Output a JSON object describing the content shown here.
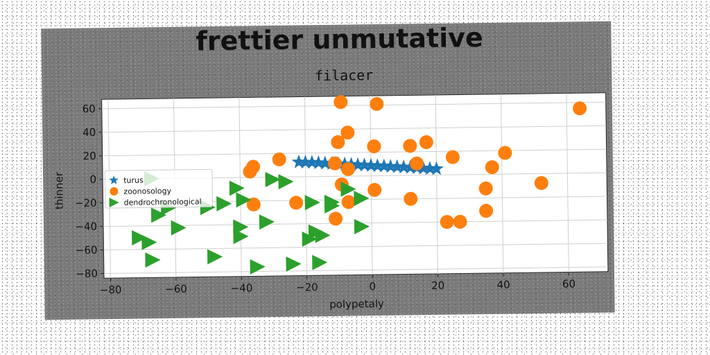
{
  "chart_data": {
    "type": "scatter",
    "title": "frettier unmutative",
    "subtitle": "filacer",
    "xlabel": "polypetaly",
    "ylabel": "thinner",
    "xlim": [
      -82,
      72
    ],
    "ylim": [
      -84,
      68
    ],
    "xticks": [
      -80,
      -60,
      -40,
      -20,
      0,
      20,
      40,
      60
    ],
    "yticks": [
      -80,
      -60,
      -40,
      -20,
      0,
      20,
      40,
      60
    ],
    "xtick_labels": [
      "−80",
      "−60",
      "−40",
      "−20",
      "0",
      "20",
      "40",
      "60"
    ],
    "ytick_labels": [
      "−80",
      "−60",
      "−40",
      "−20",
      "0",
      "20",
      "40",
      "60"
    ],
    "grid": true,
    "legend_position": "center-left",
    "series": [
      {
        "name": "turus",
        "marker": "star",
        "color": "#1f77b4",
        "points": [
          [
            -22,
            12.5
          ],
          [
            -20,
            12.2
          ],
          [
            -18,
            12
          ],
          [
            -16,
            11.6
          ],
          [
            -14,
            11.2
          ],
          [
            -12,
            10.8
          ],
          [
            -10,
            10.5
          ],
          [
            -8,
            10.2
          ],
          [
            -6,
            9.8
          ],
          [
            -4,
            9.4
          ],
          [
            -2,
            9.1
          ],
          [
            0,
            8.7
          ],
          [
            2,
            8.4
          ],
          [
            4,
            8.1
          ],
          [
            6,
            7.7
          ],
          [
            8,
            7.3
          ],
          [
            10,
            7
          ],
          [
            12,
            6.6
          ],
          [
            14,
            6.3
          ],
          [
            16,
            5.9
          ],
          [
            18,
            5.5
          ],
          [
            20,
            5.2
          ]
        ]
      },
      {
        "name": "zoonosology",
        "marker": "circle",
        "color": "#ff7f0e",
        "points": [
          [
            -9,
            63
          ],
          [
            2,
            61
          ],
          [
            -7,
            37
          ],
          [
            -10,
            29
          ],
          [
            1,
            25
          ],
          [
            -36,
            9
          ],
          [
            -37,
            5
          ],
          [
            -28,
            15
          ],
          [
            -11,
            11
          ],
          [
            -7,
            6
          ],
          [
            12,
            25
          ],
          [
            17,
            28
          ],
          [
            14,
            10
          ],
          [
            25,
            15
          ],
          [
            41,
            18
          ],
          [
            37,
            6
          ],
          [
            64,
            55
          ],
          [
            -9,
            -7
          ],
          [
            1,
            -12
          ],
          [
            -7,
            -22
          ],
          [
            -36,
            -23
          ],
          [
            -23,
            -22
          ],
          [
            -11,
            -36
          ],
          [
            12,
            -20
          ],
          [
            23,
            -40
          ],
          [
            27,
            -40
          ],
          [
            35,
            -31
          ],
          [
            35,
            -12
          ],
          [
            52,
            -8
          ]
        ]
      },
      {
        "name": "dendrochronological",
        "marker": "triangle-right",
        "color": "#2ca02c",
        "points": [
          [
            -67,
            0
          ],
          [
            -41,
            -9
          ],
          [
            -39,
            -19
          ],
          [
            -30,
            -2
          ],
          [
            -26,
            -4
          ],
          [
            -45,
            -22
          ],
          [
            -50,
            -25
          ],
          [
            -62,
            -25
          ],
          [
            -65,
            -31
          ],
          [
            -59,
            -42
          ],
          [
            -40,
            -42
          ],
          [
            -32,
            -38
          ],
          [
            -40,
            -50
          ],
          [
            -18,
            -22
          ],
          [
            -12,
            -22
          ],
          [
            -12,
            -25
          ],
          [
            -7,
            -11
          ],
          [
            -3,
            -19
          ],
          [
            -3,
            -43
          ],
          [
            -17,
            -47
          ],
          [
            -19,
            -53
          ],
          [
            -15,
            -50
          ],
          [
            -71,
            -50
          ],
          [
            -68,
            -54
          ],
          [
            -67,
            -69
          ],
          [
            -48,
            -67
          ],
          [
            -35,
            -76
          ],
          [
            -24,
            -74
          ],
          [
            -16,
            -73
          ]
        ]
      }
    ]
  },
  "colors": {
    "panel": "#7a7a7a",
    "plot_bg": "#ffffff",
    "grid": "#cfcfcf"
  }
}
